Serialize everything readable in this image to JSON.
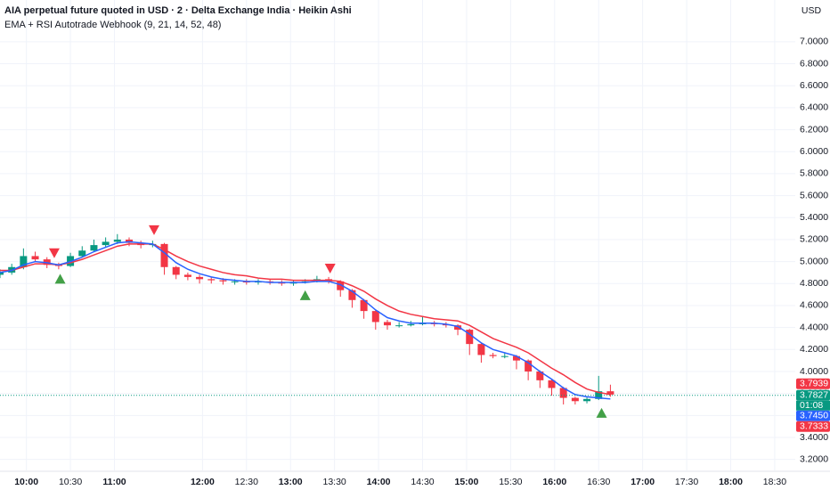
{
  "header": {
    "title": "AIA perpetual future quoted in USD · 2 · Delta Exchange India · Heikin Ashi",
    "indicator": "EMA + RSI Autotrade Webhook (9, 21, 14, 52, 48)"
  },
  "chart_data": {
    "type": "candlestick",
    "currency": "USD",
    "x": [
      "09:42",
      "09:50",
      "09:58",
      "10:06",
      "10:14",
      "10:22",
      "10:30",
      "10:38",
      "10:46",
      "10:54",
      "11:02",
      "11:10",
      "11:18",
      "11:26",
      "11:34",
      "11:42",
      "11:50",
      "11:58",
      "12:06",
      "12:14",
      "12:22",
      "12:30",
      "12:38",
      "12:46",
      "12:54",
      "13:02",
      "13:10",
      "13:18",
      "13:26",
      "13:34",
      "13:42",
      "13:50",
      "13:58",
      "14:06",
      "14:14",
      "14:22",
      "14:30",
      "14:38",
      "14:46",
      "14:54",
      "15:02",
      "15:10",
      "15:18",
      "15:26",
      "15:34",
      "15:42",
      "15:50",
      "15:58",
      "16:06",
      "16:14",
      "16:22",
      "16:30",
      "16:38"
    ],
    "open": [
      4.88,
      4.9,
      4.95,
      5.05,
      5.02,
      4.97,
      4.96,
      5.05,
      5.1,
      5.15,
      5.18,
      5.2,
      5.17,
      5.15,
      5.16,
      4.95,
      4.88,
      4.86,
      4.84,
      4.83,
      4.82,
      4.82,
      4.81,
      4.82,
      4.81,
      4.8,
      4.81,
      4.82,
      4.84,
      4.82,
      4.74,
      4.65,
      4.55,
      4.45,
      4.42,
      4.42,
      4.43,
      4.44,
      4.43,
      4.42,
      4.38,
      4.25,
      4.15,
      4.14,
      4.14,
      4.1,
      4.0,
      3.92,
      3.85,
      3.76,
      3.73,
      3.75,
      3.82
    ],
    "high": [
      4.93,
      4.98,
      5.12,
      5.09,
      5.04,
      4.99,
      5.08,
      5.14,
      5.2,
      5.22,
      5.25,
      5.22,
      5.19,
      5.19,
      5.17,
      4.96,
      4.9,
      4.88,
      4.86,
      4.85,
      4.84,
      4.84,
      4.84,
      4.84,
      4.83,
      4.83,
      4.84,
      4.87,
      4.86,
      4.83,
      4.75,
      4.66,
      4.56,
      4.47,
      4.45,
      4.46,
      4.5,
      4.46,
      4.45,
      4.43,
      4.39,
      4.26,
      4.17,
      4.17,
      4.15,
      4.11,
      4.01,
      3.93,
      3.86,
      3.77,
      3.77,
      3.96,
      3.88
    ],
    "low": [
      4.85,
      4.88,
      4.93,
      5.0,
      4.94,
      4.93,
      4.95,
      5.04,
      5.09,
      5.13,
      5.16,
      5.14,
      5.12,
      5.13,
      4.88,
      4.84,
      4.83,
      4.8,
      4.8,
      4.79,
      4.79,
      4.79,
      4.79,
      4.79,
      4.78,
      4.78,
      4.8,
      4.81,
      4.8,
      4.68,
      4.58,
      4.48,
      4.38,
      4.38,
      4.4,
      4.41,
      4.42,
      4.41,
      4.4,
      4.33,
      4.15,
      4.08,
      4.12,
      4.12,
      4.02,
      3.92,
      3.85,
      3.78,
      3.7,
      3.7,
      3.71,
      3.74,
      3.77
    ],
    "close": [
      4.9,
      4.95,
      5.05,
      5.02,
      4.97,
      4.96,
      5.05,
      5.1,
      5.15,
      5.18,
      5.2,
      5.17,
      5.15,
      5.16,
      4.95,
      4.88,
      4.86,
      4.84,
      4.83,
      4.82,
      4.82,
      4.81,
      4.82,
      4.81,
      4.8,
      4.81,
      4.82,
      4.84,
      4.82,
      4.74,
      4.65,
      4.55,
      4.45,
      4.42,
      4.42,
      4.43,
      4.44,
      4.43,
      4.42,
      4.38,
      4.25,
      4.15,
      4.14,
      4.14,
      4.1,
      4.0,
      3.92,
      3.85,
      3.76,
      3.73,
      3.75,
      3.82,
      3.79
    ],
    "up_color": "#089981",
    "down_color": "#f23645",
    "ema_fast": {
      "color": "#2962ff",
      "values": [
        4.9,
        4.92,
        4.97,
        5.0,
        4.99,
        4.97,
        5.0,
        5.04,
        5.09,
        5.13,
        5.17,
        5.18,
        5.17,
        5.16,
        5.08,
        4.99,
        4.93,
        4.89,
        4.86,
        4.84,
        4.83,
        4.82,
        4.82,
        4.81,
        4.81,
        4.81,
        4.81,
        4.82,
        4.82,
        4.79,
        4.73,
        4.65,
        4.56,
        4.49,
        4.46,
        4.44,
        4.44,
        4.44,
        4.43,
        4.41,
        4.34,
        4.26,
        4.2,
        4.17,
        4.14,
        4.08,
        4.0,
        3.93,
        3.85,
        3.79,
        3.77,
        3.76,
        3.75
      ]
    },
    "ema_slow": {
      "color": "#f23645",
      "values": [
        4.92,
        4.92,
        4.95,
        4.98,
        4.98,
        4.97,
        4.99,
        5.02,
        5.06,
        5.1,
        5.14,
        5.16,
        5.16,
        5.16,
        5.11,
        5.05,
        5.0,
        4.96,
        4.93,
        4.9,
        4.88,
        4.87,
        4.85,
        4.84,
        4.84,
        4.83,
        4.83,
        4.83,
        4.83,
        4.82,
        4.78,
        4.73,
        4.66,
        4.6,
        4.55,
        4.52,
        4.5,
        4.48,
        4.47,
        4.46,
        4.42,
        4.36,
        4.3,
        4.26,
        4.22,
        4.17,
        4.1,
        4.03,
        3.97,
        3.9,
        3.84,
        3.81,
        3.79
      ]
    },
    "sell_signals": {
      "color": "#f23645",
      "x": [
        "10:19",
        "11:27",
        "13:27"
      ],
      "y": [
        5.08,
        5.29,
        4.94
      ]
    },
    "buy_signals": {
      "color": "#43a047",
      "x": [
        "10:23",
        "13:10",
        "16:32"
      ],
      "y": [
        4.84,
        4.69,
        3.62
      ]
    },
    "last_price": {
      "value": 3.7827,
      "label": "3.7827",
      "countdown": "01:08",
      "color": "#089981"
    },
    "price_labels": [
      {
        "value": 3.7939,
        "label": "3.7939",
        "color": "#f23645"
      },
      {
        "value": 3.745,
        "label": "3.7450",
        "color": "#2962ff"
      },
      {
        "value": 3.7333,
        "label": "3.7333",
        "color": "#f23645"
      }
    ],
    "xlim": [
      "09:42",
      "18:44"
    ],
    "xticks": [
      "10:00",
      "10:30",
      "11:00",
      "12:00",
      "12:30",
      "13:00",
      "13:30",
      "14:00",
      "14:30",
      "15:00",
      "15:30",
      "16:00",
      "16:30",
      "17:00",
      "17:30",
      "18:00",
      "18:30"
    ],
    "ylim": [
      3.1,
      7.38
    ],
    "yticks": [
      {
        "value": 3.2,
        "label": "3.2000"
      },
      {
        "value": 3.4,
        "label": "3.4000"
      },
      {
        "value": 3.6,
        "label": "3.6000"
      },
      {
        "value": 3.8,
        "label": "3.8000"
      },
      {
        "value": 4.0,
        "label": "4.0000"
      },
      {
        "value": 4.2,
        "label": "4.2000"
      },
      {
        "value": 4.4,
        "label": "4.4000"
      },
      {
        "value": 4.6,
        "label": "4.6000"
      },
      {
        "value": 4.8,
        "label": "4.8000"
      },
      {
        "value": 5.0,
        "label": "5.0000"
      },
      {
        "value": 5.2,
        "label": "5.2000"
      },
      {
        "value": 5.4,
        "label": "5.4000"
      },
      {
        "value": 5.6,
        "label": "5.6000"
      },
      {
        "value": 5.8,
        "label": "5.8000"
      },
      {
        "value": 6.0,
        "label": "6.0000"
      },
      {
        "value": 6.2,
        "label": "6.2000"
      },
      {
        "value": 6.4,
        "label": "6.4000"
      },
      {
        "value": 6.6,
        "label": "6.6000"
      },
      {
        "value": 6.8,
        "label": "6.8000"
      },
      {
        "value": 7.0,
        "label": "7.0000"
      }
    ],
    "grid": true
  }
}
